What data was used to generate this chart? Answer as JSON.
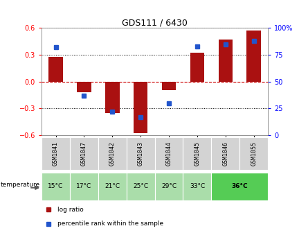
{
  "title": "GDS111 / 6430",
  "samples": [
    "GSM1041",
    "GSM1047",
    "GSM1042",
    "GSM1043",
    "GSM1044",
    "GSM1045",
    "GSM1046",
    "GSM1055"
  ],
  "temperatures": [
    "15°C",
    "17°C",
    "21°C",
    "25°C",
    "29°C",
    "33°C",
    "36°C",
    "36°C"
  ],
  "log_ratio": [
    0.28,
    -0.12,
    -0.35,
    -0.575,
    -0.1,
    0.32,
    0.47,
    0.575
  ],
  "percentile_rank": [
    82,
    37,
    22,
    17,
    30,
    83,
    85,
    88
  ],
  "ylim_left": [
    -0.6,
    0.6
  ],
  "ylim_right": [
    0,
    100
  ],
  "yticks_left": [
    -0.6,
    -0.3,
    0.0,
    0.3,
    0.6
  ],
  "yticks_right": [
    0,
    25,
    50,
    75,
    100
  ],
  "bar_color": "#aa1111",
  "dot_color": "#2255cc",
  "zero_line_color": "#cc0000",
  "sample_bg_color": "#d3d3d3",
  "temp_light_color": "#aaddaa",
  "temp_dark_color": "#55cc55",
  "legend_items": [
    "log ratio",
    "percentile rank within the sample"
  ],
  "legend_colors": [
    "#aa1111",
    "#2255cc"
  ],
  "bar_width": 0.5
}
